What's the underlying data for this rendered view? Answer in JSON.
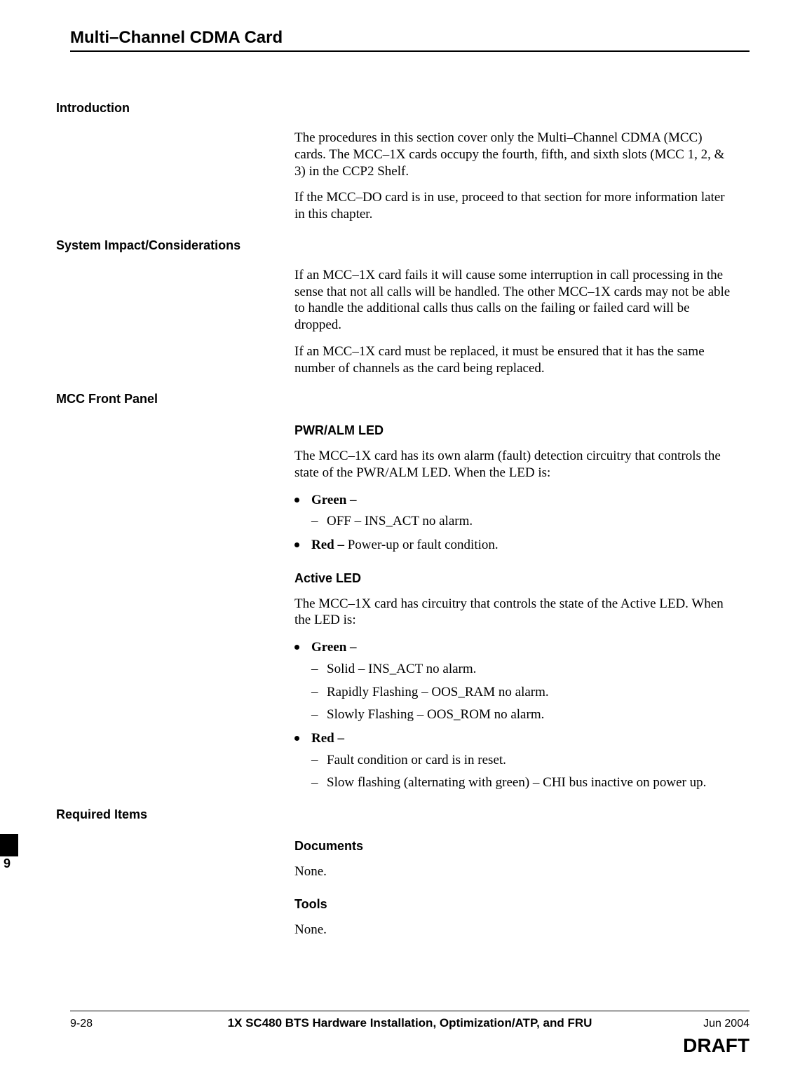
{
  "page_title": "Multi–Channel CDMA Card",
  "chapter_tab_num": "9",
  "sections": {
    "intro": {
      "heading": "Introduction",
      "p1": "The procedures in this section cover only the Multi–Channel CDMA (MCC) cards. The MCC–1X cards occupy the fourth, fifth, and sixth slots (MCC 1, 2, & 3) in the CCP2 Shelf.",
      "p2": "If the MCC–DO card is in use, proceed to that section for more information later in this chapter."
    },
    "impact": {
      "heading": "System Impact/Considerations",
      "p1": "If an MCC–1X card fails it will cause some interruption in call processing in the sense that not all calls will be handled. The other MCC–1X cards may not be able to handle the additional calls thus calls on the failing or failed card will be dropped.",
      "p2": "If an MCC–1X card must be replaced, it must be ensured that it has the same number of channels as the card being replaced."
    },
    "panel": {
      "heading": "MCC Front Panel",
      "pwr_alm": {
        "sub": "PWR/ALM LED",
        "intro": "The MCC–1X card has its own alarm (fault) detection circuitry that controls the state of the PWR/ALM LED. When the LED is:",
        "green_label": "Green –",
        "green_items": [
          "OFF – INS_ACT no alarm."
        ],
        "red_label": "Red – ",
        "red_rest": "Power-up or fault condition."
      },
      "active": {
        "sub": "Active LED",
        "intro": "The MCC–1X card has circuitry that controls the state of the Active LED. When the LED is:",
        "green_label": "Green –",
        "green_items": [
          "Solid – INS_ACT no alarm.",
          "Rapidly Flashing  – OOS_RAM no alarm.",
          "Slowly Flashing – OOS_ROM no alarm."
        ],
        "red_label": "Red –",
        "red_items": [
          "Fault condition or card is in reset.",
          "Slow flashing (alternating with green) – CHI bus inactive on power up."
        ]
      }
    },
    "required": {
      "heading": "Required Items",
      "docs_sub": "Documents",
      "docs_val": "None.",
      "tools_sub": "Tools",
      "tools_val": "None."
    }
  },
  "footer": {
    "left": "9-28",
    "center": "1X SC480 BTS Hardware Installation, Optimization/ATP, and FRU",
    "right": "Jun 2004",
    "draft": "DRAFT"
  }
}
